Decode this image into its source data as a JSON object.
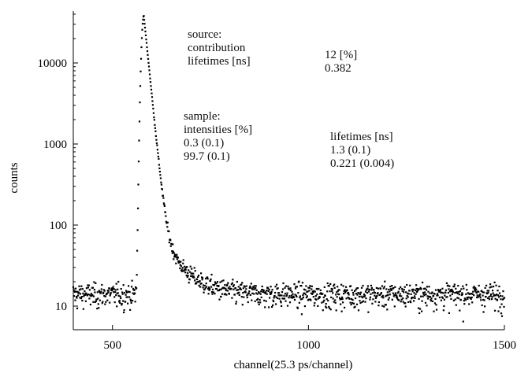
{
  "chart_data": {
    "type": "scatter",
    "title": "",
    "xlabel": "channel(25.3 ps/channel)",
    "ylabel": "counts",
    "xlim": [
      400,
      1500
    ],
    "ylim": [
      6,
      40000
    ],
    "yscale": "log",
    "xticks": [
      500,
      1000,
      1500
    ],
    "xtick_labels": [
      "500",
      "1000",
      "1500"
    ],
    "yticks": [
      10,
      100,
      1000,
      10000
    ],
    "ytick_labels": [
      "10",
      "100",
      "1000",
      "10000"
    ],
    "grid": false,
    "legend": "none",
    "marker_color": "#000000",
    "background_level": 14,
    "peak_channel": 580,
    "peak_counts": 38000,
    "series": [
      {
        "values_note_free_points": [
          [
            540,
            14
          ],
          [
            550,
            18
          ],
          [
            555,
            22
          ],
          [
            560,
            35
          ],
          [
            563,
            80
          ],
          [
            566,
            190
          ],
          [
            568,
            450
          ],
          [
            570,
            1100
          ],
          [
            572,
            3000
          ],
          [
            574,
            9000
          ],
          [
            576,
            22000
          ],
          [
            578,
            34000
          ],
          [
            580,
            38000
          ],
          [
            583,
            30000
          ],
          [
            590,
            14000
          ],
          [
            600,
            5000
          ],
          [
            620,
            1200
          ],
          [
            640,
            300
          ],
          [
            660,
            90
          ],
          [
            680,
            45
          ],
          [
            700,
            28
          ],
          [
            720,
            20
          ],
          [
            760,
            16
          ],
          [
            800,
            14
          ],
          [
            1000,
            14
          ],
          [
            1500,
            14
          ]
        ]
      }
    ]
  },
  "annotations": {
    "source_title": "source:",
    "source_contribution_label": "contribution",
    "source_lifetimes_label": "lifetimes [ns]",
    "source_contribution_value": "12 [%]",
    "source_lifetime_value": "0.382",
    "sample_title": "sample:",
    "sample_intensities_label": "intensities [%]",
    "sample_intensity_1": "0.3 (0.1)",
    "sample_intensity_2": "99.7 (0.1)",
    "sample_lifetimes_label": "lifetimes [ns]",
    "sample_lifetime_1": "1.3 (0.1)",
    "sample_lifetime_2": "0.221 (0.004)"
  }
}
